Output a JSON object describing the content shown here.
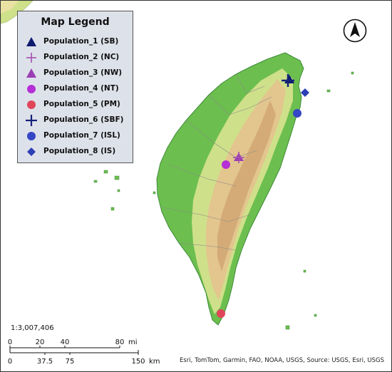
{
  "legend": {
    "title": "Map Legend",
    "items": [
      {
        "label": "Population_1 (SB)",
        "symbol": "triangle",
        "color": "#0d1a6e"
      },
      {
        "label": "Population_2 (NC)",
        "symbol": "plus",
        "color": "#a54fb0"
      },
      {
        "label": "Population_3 (NW)",
        "symbol": "triangle",
        "color": "#9a3fb4"
      },
      {
        "label": "Population_4 (NT)",
        "symbol": "circle",
        "color": "#b52fd6"
      },
      {
        "label": "Population_5 (PM)",
        "symbol": "circle",
        "color": "#e0465a"
      },
      {
        "label": "Population_6 (SBF)",
        "symbol": "plus",
        "color": "#142278"
      },
      {
        "label": "Population_7 (ISL)",
        "symbol": "circle",
        "color": "#3446c4"
      },
      {
        "label": "Population_8 (IS)",
        "symbol": "diamond",
        "color": "#2c3fb4"
      }
    ]
  },
  "north_arrow": "north-arrow-icon",
  "scale": {
    "ratio": "1:3,007,406",
    "miles_ticks": [
      "0",
      "20",
      "40",
      "80",
      "mi"
    ],
    "km_ticks": [
      "0",
      "37.5",
      "75",
      "150",
      "km"
    ]
  },
  "credits": "Esri, TomTom, Garmin, FAO, NOAA, USGS, Source: USGS, Esri, USGS",
  "colors": {
    "sea": "#ffffff",
    "lowland": "#6cbf4e",
    "hill": "#cfe08a",
    "mountain": "#e3c58e",
    "peak": "#cfa472"
  }
}
